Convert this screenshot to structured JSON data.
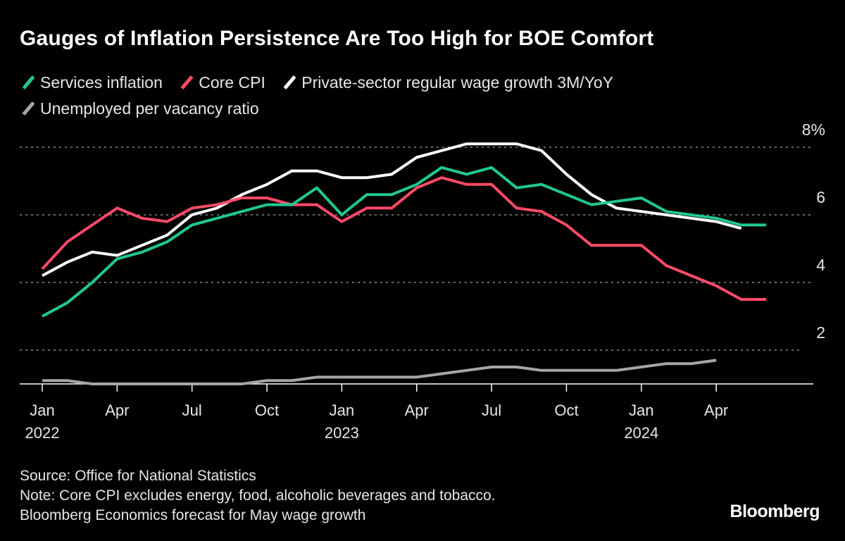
{
  "chart_data": {
    "type": "line",
    "title": "Gauges of Inflation Persistence Are Too High for BOE Comfort",
    "xlabel": "",
    "ylabel": "",
    "ylim": [
      1,
      8.3
    ],
    "y_ticks": [
      {
        "value": 8,
        "label": "8%"
      },
      {
        "value": 6,
        "label": "6"
      },
      {
        "value": 4,
        "label": "4"
      },
      {
        "value": 2,
        "label": "2"
      }
    ],
    "x_ticks": [
      {
        "month": 0,
        "label": "Jan",
        "year": "2022"
      },
      {
        "month": 3,
        "label": "Apr",
        "year": ""
      },
      {
        "month": 6,
        "label": "Jul",
        "year": ""
      },
      {
        "month": 9,
        "label": "Oct",
        "year": ""
      },
      {
        "month": 12,
        "label": "Jan",
        "year": "2023"
      },
      {
        "month": 15,
        "label": "Apr",
        "year": ""
      },
      {
        "month": 18,
        "label": "Jul",
        "year": ""
      },
      {
        "month": 21,
        "label": "Oct",
        "year": ""
      },
      {
        "month": 24,
        "label": "Jan",
        "year": "2024"
      },
      {
        "month": 27,
        "label": "Apr",
        "year": ""
      }
    ],
    "x_start": "2022-01",
    "grid": true,
    "legend_position": "top-left",
    "series": [
      {
        "name": "Services inflation",
        "color": "#1ec990",
        "values": [
          3.0,
          3.4,
          4.0,
          4.7,
          4.9,
          5.2,
          5.7,
          5.9,
          6.1,
          6.3,
          6.3,
          6.8,
          6.0,
          6.6,
          6.6,
          6.9,
          7.4,
          7.2,
          7.4,
          6.8,
          6.9,
          6.6,
          6.3,
          6.4,
          6.5,
          6.1,
          6.0,
          5.9,
          5.7,
          5.7
        ]
      },
      {
        "name": "Core CPI",
        "color": "#ff4a68",
        "values": [
          4.4,
          5.2,
          5.7,
          6.2,
          5.9,
          5.8,
          6.2,
          6.3,
          6.5,
          6.5,
          6.3,
          6.3,
          5.8,
          6.2,
          6.2,
          6.8,
          7.1,
          6.9,
          6.9,
          6.2,
          6.1,
          5.7,
          5.1,
          5.1,
          5.1,
          4.5,
          4.2,
          3.9,
          3.5,
          3.5
        ]
      },
      {
        "name": "Private-sector regular wage growth 3M/YoY",
        "color": "#ffffff",
        "values": [
          4.2,
          4.6,
          4.9,
          4.8,
          5.1,
          5.4,
          6.0,
          6.2,
          6.6,
          6.9,
          7.3,
          7.3,
          7.1,
          7.1,
          7.2,
          7.7,
          7.9,
          8.1,
          8.1,
          8.1,
          7.9,
          7.2,
          6.6,
          6.2,
          6.1,
          6.0,
          5.9,
          5.8,
          5.6
        ]
      },
      {
        "name": "Unemployed per vacancy ratio",
        "color": "#a6a6a6",
        "values": [
          1.1,
          1.1,
          1.0,
          1.0,
          1.0,
          1.0,
          1.0,
          1.0,
          1.0,
          1.1,
          1.1,
          1.2,
          1.2,
          1.2,
          1.2,
          1.2,
          1.3,
          1.4,
          1.5,
          1.5,
          1.4,
          1.4,
          1.4,
          1.4,
          1.5,
          1.6,
          1.6,
          1.7
        ]
      }
    ]
  },
  "footer": {
    "source": "Source: Office for National Statistics",
    "note": "Note: Core CPI excludes energy, food, alcoholic beverages and tobacco.",
    "note2": "Bloomberg Economics forecast for May wage growth"
  },
  "logo": "Bloomberg"
}
